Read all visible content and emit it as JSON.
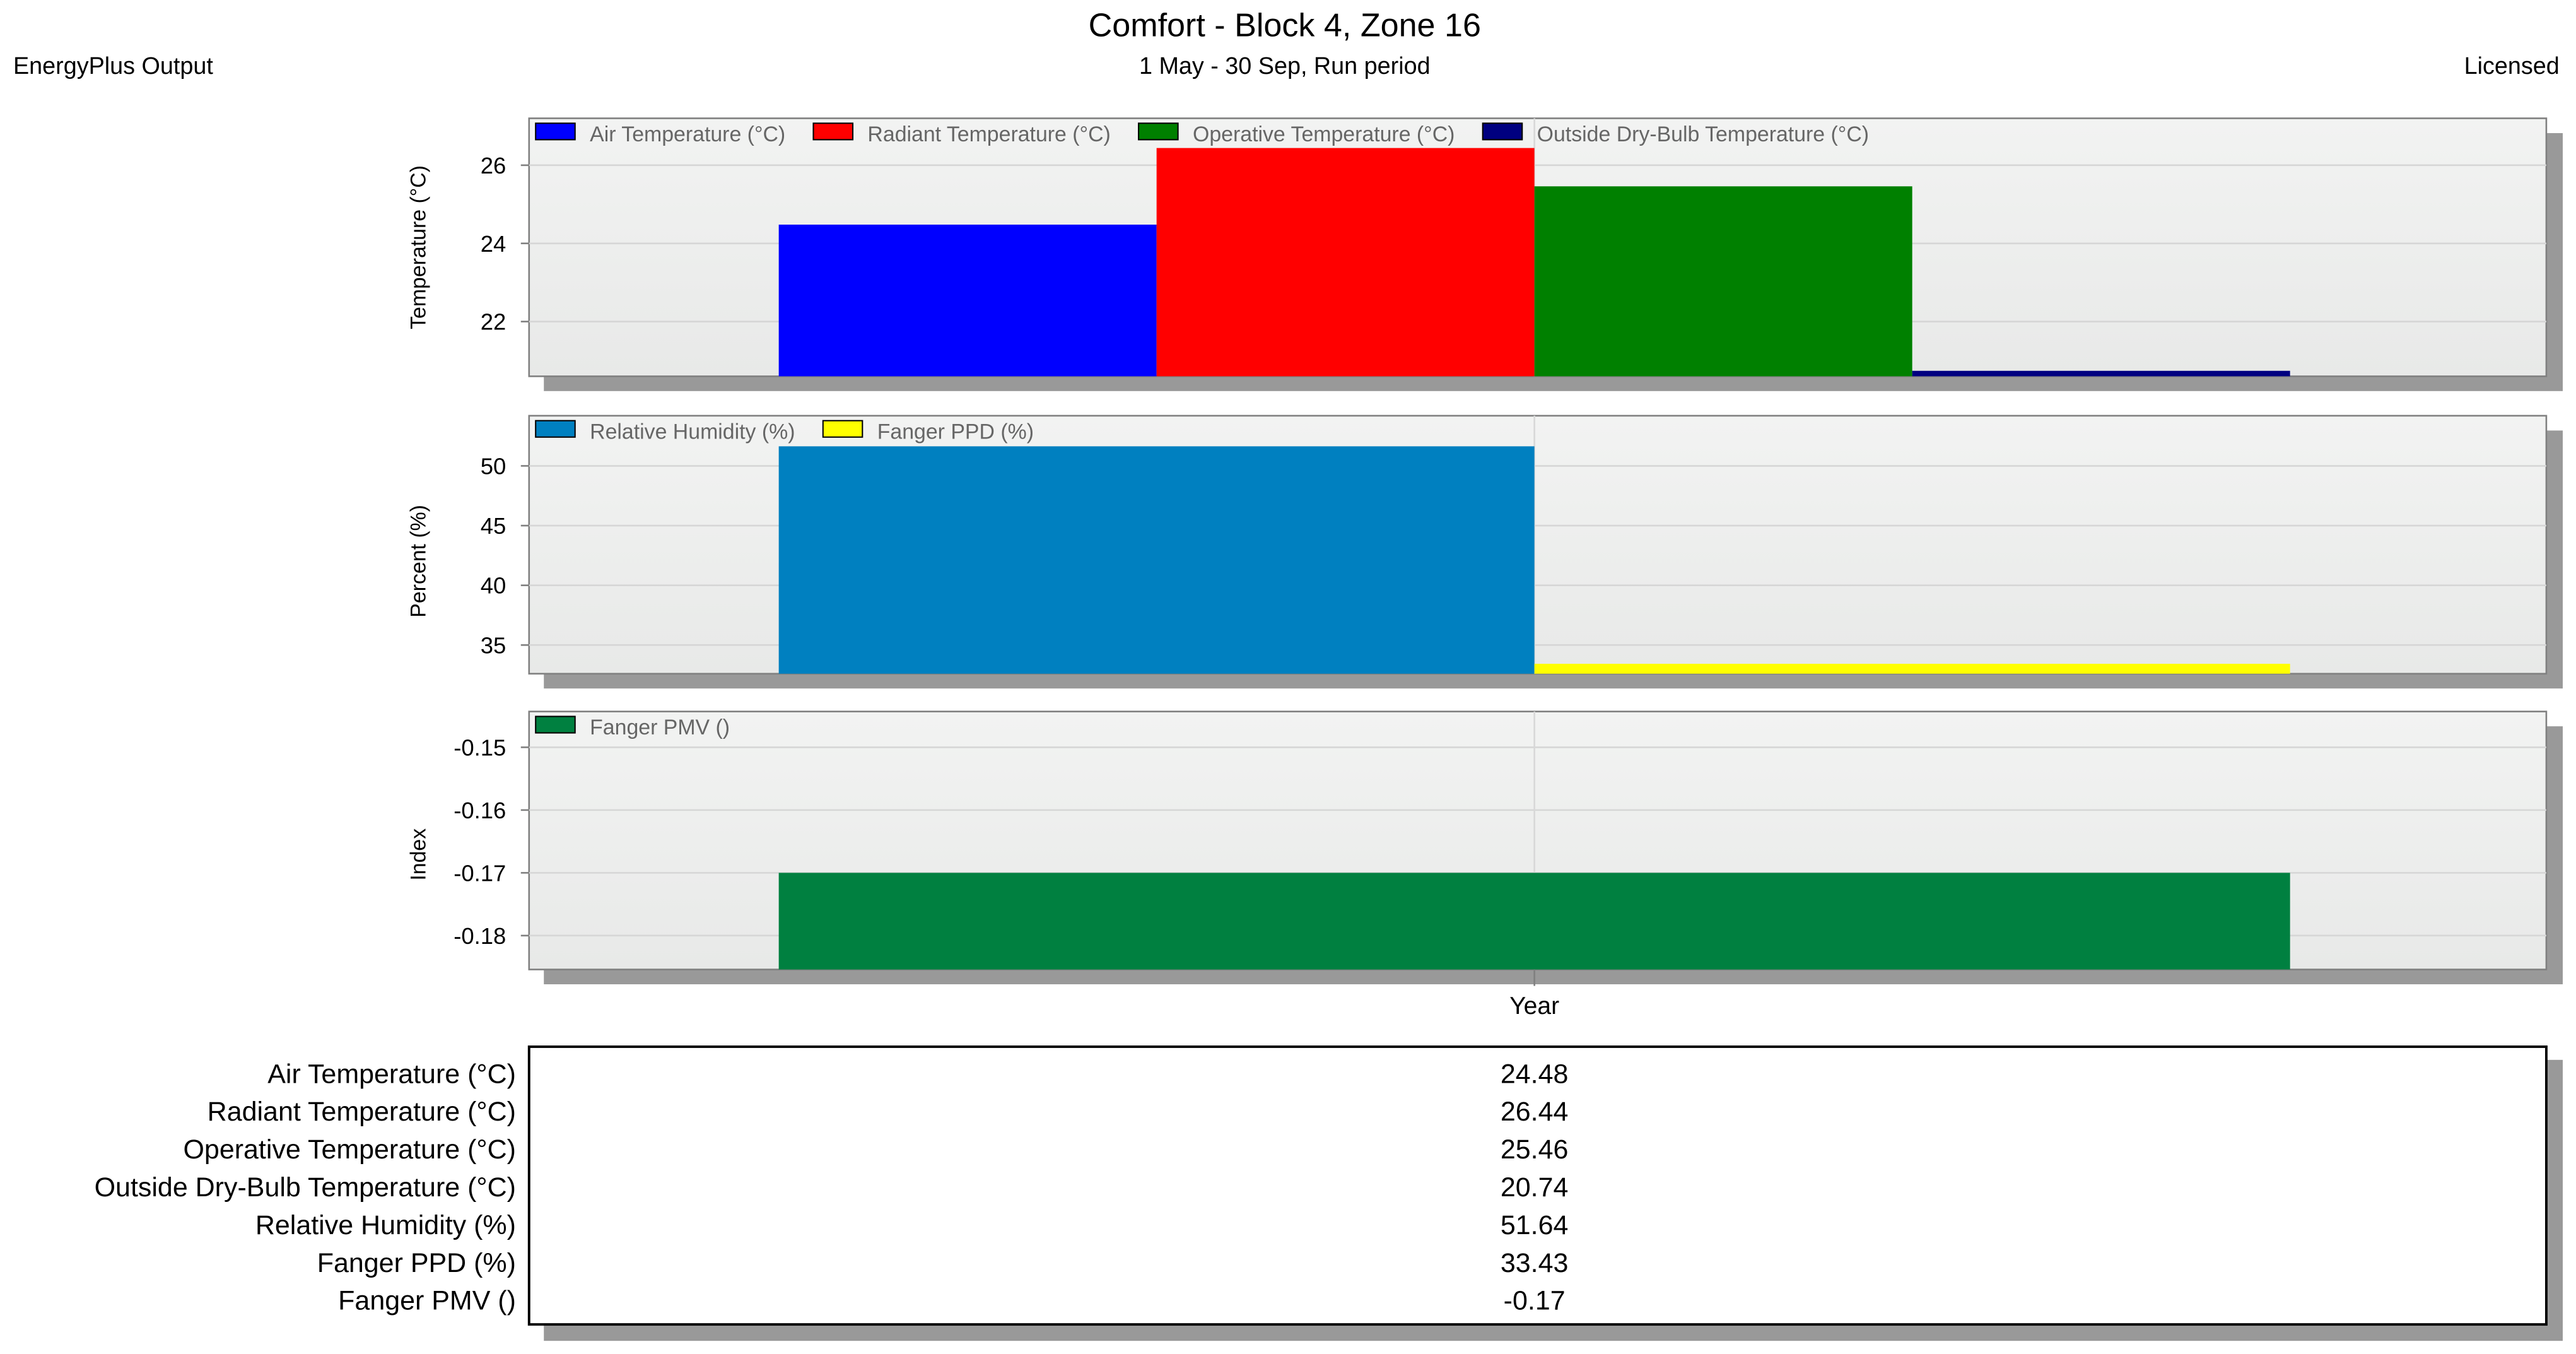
{
  "header": {
    "title": "Comfort - Block 4, Zone 16",
    "subtitle": "1 May - 30 Sep, Run period",
    "left_label": "EnergyPlus Output",
    "right_label": "Licensed"
  },
  "chart_data": [
    {
      "type": "bar",
      "ylabel": "Temperature (°C)",
      "ylim": [
        20.6,
        27.2
      ],
      "yticks": [
        22,
        24,
        26
      ],
      "grid": true,
      "legend_position": "top-left",
      "series": [
        {
          "name": "Air Temperature (°C)",
          "values": [
            24.48
          ],
          "color": "#0000FF"
        },
        {
          "name": "Radiant Temperature (°C)",
          "values": [
            26.44
          ],
          "color": "#FF0000"
        },
        {
          "name": "Operative Temperature (°C)",
          "values": [
            25.46
          ],
          "color": "#008000"
        },
        {
          "name": "Outside Dry-Bulb Temperature (°C)",
          "values": [
            20.74
          ],
          "color": "#000080"
        }
      ]
    },
    {
      "type": "bar",
      "ylabel": "Percent (%)",
      "ylim": [
        32.6,
        54.2
      ],
      "yticks": [
        35,
        40,
        45,
        50
      ],
      "grid": true,
      "legend_position": "top-left",
      "series": [
        {
          "name": "Relative Humidity (%)",
          "values": [
            51.64
          ],
          "color": "#0080C0"
        },
        {
          "name": "Fanger PPD (%)",
          "values": [
            33.43
          ],
          "color": "#FFFF00"
        }
      ]
    },
    {
      "type": "bar",
      "ylabel": "Index",
      "xlabel": "Year",
      "ylim": [
        -0.1854,
        -0.1443
      ],
      "yticks": [
        "-0.15",
        "-0.16",
        "-0.17",
        "-0.18"
      ],
      "grid": true,
      "legend_position": "top-left",
      "series": [
        {
          "name": "Fanger PMV ()",
          "values": [
            -0.17
          ],
          "color": "#008040"
        }
      ]
    }
  ],
  "summary_table": {
    "rows": [
      {
        "label": "Air Temperature (°C)",
        "value": "24.48"
      },
      {
        "label": "Radiant Temperature (°C)",
        "value": "26.44"
      },
      {
        "label": "Operative Temperature (°C)",
        "value": "25.46"
      },
      {
        "label": "Outside Dry-Bulb Temperature (°C)",
        "value": "20.74"
      },
      {
        "label": "Relative Humidity (%)",
        "value": "51.64"
      },
      {
        "label": "Fanger PPD (%)",
        "value": "33.43"
      },
      {
        "label": "Fanger PMV ()",
        "value": "-0.17"
      }
    ]
  }
}
